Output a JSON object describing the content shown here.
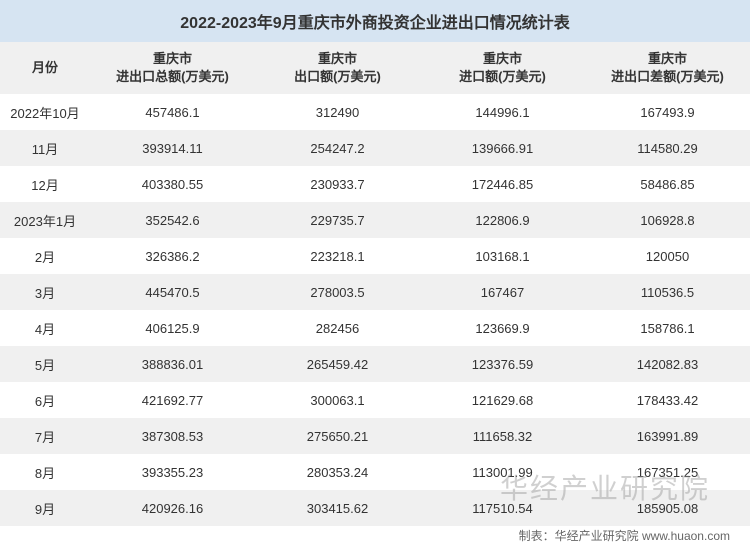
{
  "title": "2022-2023年9月重庆市外商投资企业进出口情况统计表",
  "columns": [
    "月份",
    "重庆市\n进出口总额(万美元)",
    "重庆市\n出口额(万美元)",
    "重庆市\n进口额(万美元)",
    "重庆市\n进出口差额(万美元)"
  ],
  "col_widths": [
    "90px",
    "165px",
    "165px",
    "165px",
    "165px"
  ],
  "rows": [
    [
      "2022年10月",
      "457486.1",
      "312490",
      "144996.1",
      "167493.9"
    ],
    [
      "11月",
      "393914.11",
      "254247.2",
      "139666.91",
      "114580.29"
    ],
    [
      "12月",
      "403380.55",
      "230933.7",
      "172446.85",
      "58486.85"
    ],
    [
      "2023年1月",
      "352542.6",
      "229735.7",
      "122806.9",
      "106928.8"
    ],
    [
      "2月",
      "326386.2",
      "223218.1",
      "103168.1",
      "120050"
    ],
    [
      "3月",
      "445470.5",
      "278003.5",
      "167467",
      "110536.5"
    ],
    [
      "4月",
      "406125.9",
      "282456",
      "123669.9",
      "158786.1"
    ],
    [
      "5月",
      "388836.01",
      "265459.42",
      "123376.59",
      "142082.83"
    ],
    [
      "6月",
      "421692.77",
      "300063.1",
      "121629.68",
      "178433.42"
    ],
    [
      "7月",
      "387308.53",
      "275650.21",
      "111658.32",
      "163991.89"
    ],
    [
      "8月",
      "393355.23",
      "280353.24",
      "113001.99",
      "167351.25"
    ],
    [
      "9月",
      "420926.16",
      "303415.62",
      "117510.54",
      "185905.08"
    ]
  ],
  "watermark": "华经产业研究院",
  "footer_credit": "制表：华经产业研究院 www.huaon.com",
  "styling": {
    "title_bg": "#d6e4f2",
    "header_bg": "#f0f0f0",
    "row_odd_bg": "#ffffff",
    "row_even_bg": "#f0f0f0",
    "text_color": "#333333",
    "title_fontsize": 16,
    "header_fontsize": 13,
    "cell_fontsize": 13,
    "watermark_color": "rgba(150,150,150,0.45)",
    "watermark_fontsize": 28,
    "footer_fontsize": 12,
    "footer_color": "#666666"
  }
}
